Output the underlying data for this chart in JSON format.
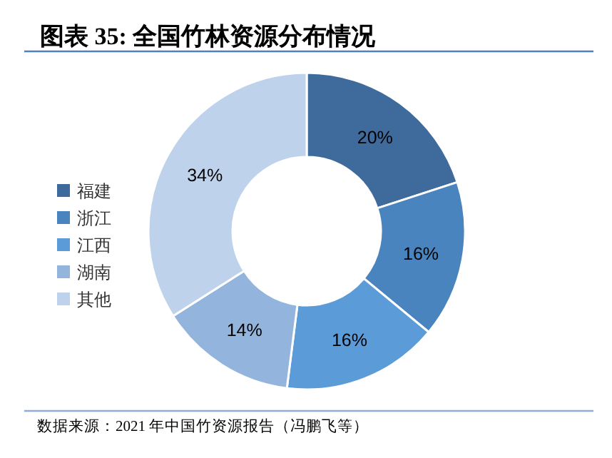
{
  "chart_data": {
    "type": "donut",
    "title": "图表 35:  全国竹林资源分布情况",
    "categories": [
      "福建",
      "浙江",
      "江西",
      "湖南",
      "其他"
    ],
    "values": [
      20,
      16,
      16,
      14,
      34
    ],
    "colors": [
      "#3e6b9c",
      "#4a84bf",
      "#5b9bd8",
      "#93b4dc",
      "#bfd2ec"
    ],
    "value_labels": [
      "20%",
      "16%",
      "16%",
      "14%",
      "34%"
    ],
    "legend": "left",
    "annotations": [
      "数据来源：2021 年中国竹资源报告（冯鹏飞等）"
    ]
  }
}
